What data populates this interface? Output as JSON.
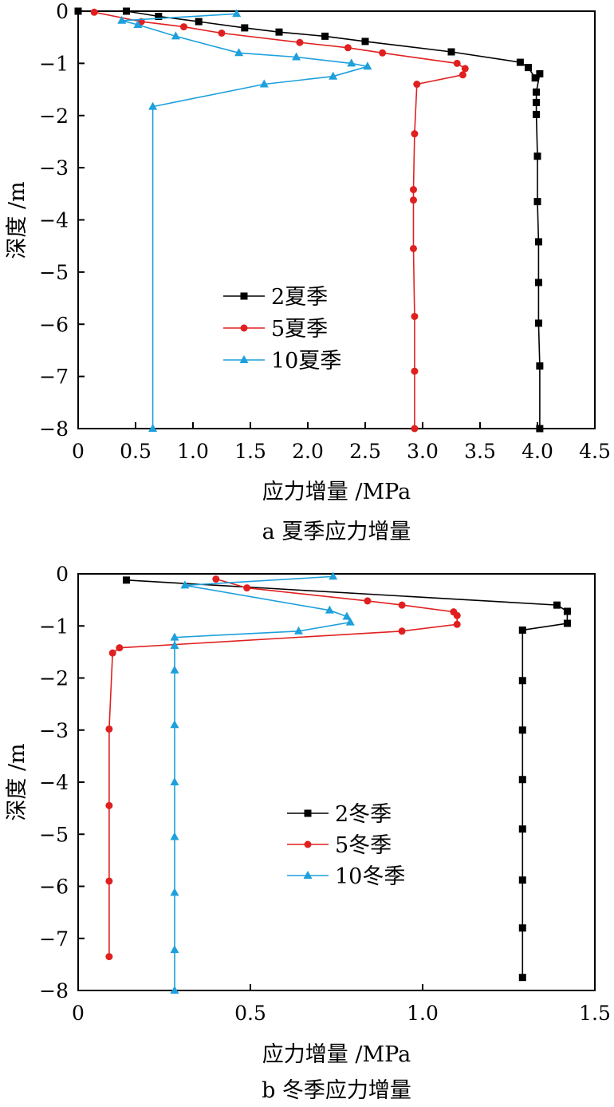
{
  "chart_data": [
    {
      "type": "line",
      "caption": "a 夏季应力增量",
      "xlabel": "应力增量 /MPa",
      "ylabel": "深度 /m",
      "xlim": [
        0,
        4.5
      ],
      "ylim": [
        -8,
        0
      ],
      "x_ticks": [
        "0",
        "0.5",
        "1.0",
        "1.5",
        "2.0",
        "2.5",
        "3.0",
        "3.5",
        "4.0",
        "4.5"
      ],
      "y_ticks": [
        "0",
        "−1",
        "−2",
        "−3",
        "−4",
        "−5",
        "−6",
        "−7",
        "−8"
      ],
      "legend_position": "center-left",
      "series": [
        {
          "name": "2夏季",
          "color": "#000000",
          "marker": "square",
          "points": [
            [
              0,
              0
            ],
            [
              0.42,
              0
            ],
            [
              0.7,
              -0.1
            ],
            [
              1.05,
              -0.2
            ],
            [
              1.45,
              -0.32
            ],
            [
              1.75,
              -0.4
            ],
            [
              2.15,
              -0.48
            ],
            [
              2.5,
              -0.58
            ],
            [
              3.25,
              -0.78
            ],
            [
              3.85,
              -0.98
            ],
            [
              3.92,
              -1.08
            ],
            [
              3.98,
              -1.28
            ],
            [
              4.02,
              -1.2
            ],
            [
              3.99,
              -1.55
            ],
            [
              3.99,
              -1.75
            ],
            [
              3.99,
              -1.98
            ],
            [
              4.0,
              -2.78
            ],
            [
              4.0,
              -3.65
            ],
            [
              4.01,
              -4.42
            ],
            [
              4.01,
              -5.2
            ],
            [
              4.01,
              -5.98
            ],
            [
              4.02,
              -6.8
            ],
            [
              4.02,
              -8.0
            ]
          ]
        },
        {
          "name": "5夏季",
          "color": "#e02020",
          "marker": "circle",
          "points": [
            [
              0.14,
              -0.02
            ],
            [
              0.55,
              -0.2
            ],
            [
              0.92,
              -0.3
            ],
            [
              1.25,
              -0.42
            ],
            [
              1.93,
              -0.6
            ],
            [
              2.35,
              -0.7
            ],
            [
              2.65,
              -0.8
            ],
            [
              3.3,
              -1.0
            ],
            [
              3.37,
              -1.1
            ],
            [
              3.35,
              -1.22
            ],
            [
              2.95,
              -1.4
            ],
            [
              2.93,
              -2.35
            ],
            [
              2.92,
              -3.42
            ],
            [
              2.92,
              -3.62
            ],
            [
              2.92,
              -4.55
            ],
            [
              2.93,
              -5.85
            ],
            [
              2.93,
              -6.9
            ],
            [
              2.93,
              -8.0
            ]
          ]
        },
        {
          "name": "10夏季",
          "color": "#1ea0dc",
          "marker": "triangle",
          "points": [
            [
              1.38,
              -0.05
            ],
            [
              0.38,
              -0.18
            ],
            [
              0.52,
              -0.26
            ],
            [
              0.85,
              -0.48
            ],
            [
              1.4,
              -0.8
            ],
            [
              1.9,
              -0.88
            ],
            [
              2.38,
              -1.0
            ],
            [
              2.52,
              -1.06
            ],
            [
              2.22,
              -1.25
            ],
            [
              1.62,
              -1.4
            ],
            [
              0.65,
              -1.83
            ],
            [
              0.65,
              -8.0
            ]
          ]
        }
      ]
    },
    {
      "type": "line",
      "caption": "b 冬季应力增量",
      "xlabel": "应力增量 /MPa",
      "ylabel": "深度 /m",
      "xlim": [
        0,
        1.5
      ],
      "ylim": [
        -8,
        0
      ],
      "x_ticks": [
        "0",
        "0.5",
        "1.0",
        "1.5"
      ],
      "y_ticks": [
        "0",
        "−1",
        "−2",
        "−3",
        "−4",
        "−5",
        "−6",
        "−7",
        "−8"
      ],
      "legend_position": "center-right",
      "series": [
        {
          "name": "2冬季",
          "color": "#000000",
          "marker": "square",
          "points": [
            [
              0.14,
              -0.12
            ],
            [
              1.39,
              -0.6
            ],
            [
              1.42,
              -0.72
            ],
            [
              1.42,
              -0.95
            ],
            [
              1.29,
              -1.08
            ],
            [
              1.29,
              -2.05
            ],
            [
              1.29,
              -3.0
            ],
            [
              1.29,
              -3.95
            ],
            [
              1.29,
              -4.9
            ],
            [
              1.29,
              -5.88
            ],
            [
              1.29,
              -6.8
            ],
            [
              1.29,
              -7.75
            ]
          ]
        },
        {
          "name": "5冬季",
          "color": "#e02020",
          "marker": "circle",
          "points": [
            [
              0.4,
              -0.1
            ],
            [
              0.49,
              -0.27
            ],
            [
              0.84,
              -0.52
            ],
            [
              0.94,
              -0.6
            ],
            [
              1.09,
              -0.73
            ],
            [
              1.1,
              -0.8
            ],
            [
              1.1,
              -0.97
            ],
            [
              0.94,
              -1.1
            ],
            [
              0.12,
              -1.42
            ],
            [
              0.1,
              -1.52
            ],
            [
              0.09,
              -2.98
            ],
            [
              0.09,
              -4.45
            ],
            [
              0.09,
              -5.9
            ],
            [
              0.09,
              -7.35
            ]
          ]
        },
        {
          "name": "10冬季",
          "color": "#1ea0dc",
          "marker": "triangle",
          "points": [
            [
              0.74,
              -0.05
            ],
            [
              0.31,
              -0.22
            ],
            [
              0.73,
              -0.7
            ],
            [
              0.78,
              -0.82
            ],
            [
              0.79,
              -0.93
            ],
            [
              0.64,
              -1.1
            ],
            [
              0.28,
              -1.22
            ],
            [
              0.28,
              -1.38
            ],
            [
              0.28,
              -1.85
            ],
            [
              0.28,
              -2.9
            ],
            [
              0.28,
              -4.0
            ],
            [
              0.28,
              -5.05
            ],
            [
              0.28,
              -6.12
            ],
            [
              0.28,
              -7.22
            ],
            [
              0.28,
              -8.0
            ]
          ]
        }
      ]
    }
  ]
}
